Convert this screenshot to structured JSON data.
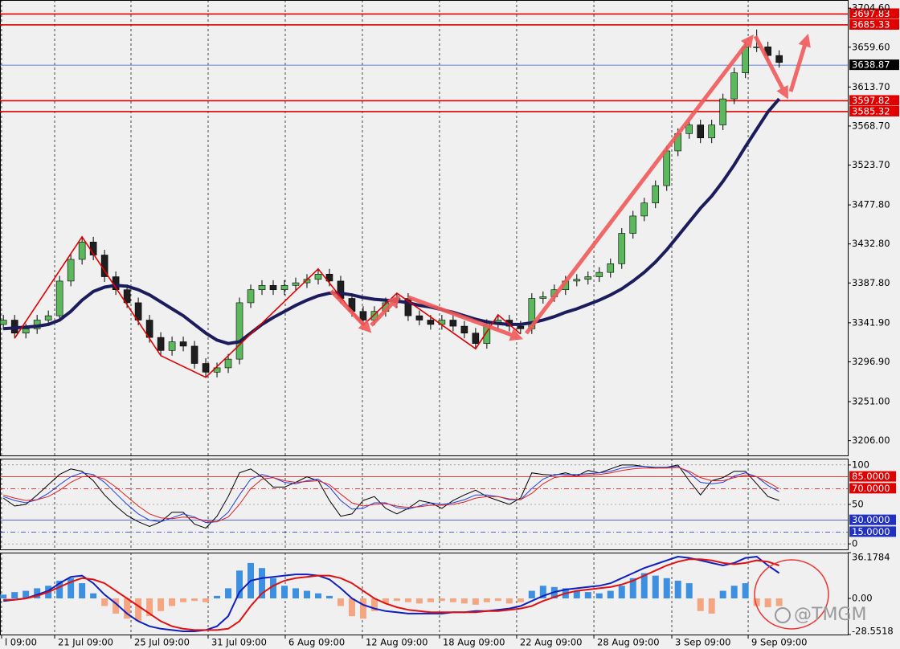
{
  "chart_data": [
    {
      "type": "candlestick",
      "xlim": [
        -0.3,
        75.1
      ],
      "xticks": [
        {
          "value": -0.16,
          "label": "l 09:00"
        },
        {
          "value": 4.56,
          "label": "21 Jul 09:00"
        },
        {
          "value": 11.35,
          "label": "25 Jul 09:00"
        },
        {
          "value": 18.21,
          "label": "31 Jul 09:00"
        },
        {
          "value": 25.07,
          "label": "6 Aug 09:00"
        },
        {
          "value": 31.93,
          "label": "12 Aug 09:00"
        },
        {
          "value": 38.79,
          "label": "18 Aug 09:00"
        },
        {
          "value": 45.65,
          "label": "22 Aug 09:00"
        },
        {
          "value": 52.52,
          "label": "28 Aug 09:00"
        },
        {
          "value": 59.45,
          "label": "3 Sep 09:00"
        },
        {
          "value": 66.24,
          "label": "9 Sep 09:00"
        }
      ],
      "ylim": [
        3189,
        3714
      ],
      "yticks": [
        {
          "value": 3704.6,
          "label": "3704.60"
        },
        {
          "value": 3659.6,
          "label": "3659.60"
        },
        {
          "value": 3613.7,
          "label": "3613.70"
        },
        {
          "value": 3568.7,
          "label": "3568.70"
        },
        {
          "value": 3523.7,
          "label": "3523.70"
        },
        {
          "value": 3477.8,
          "label": "3477.80"
        },
        {
          "value": 3432.8,
          "label": "3432.80"
        },
        {
          "value": 3387.8,
          "label": "3387.80"
        },
        {
          "value": 3341.9,
          "label": "3341.90"
        },
        {
          "value": 3296.9,
          "label": "3296.90"
        },
        {
          "value": 3251,
          "label": "3251.00"
        },
        {
          "value": 3206,
          "label": "3206.00"
        }
      ],
      "hlines": [
        {
          "value": 3697.83,
          "label": "3697.83",
          "color": "#e00000"
        },
        {
          "value": 3685.33,
          "label": "3685.33",
          "color": "#e00000"
        },
        {
          "value": 3638.87,
          "label": "3638.87",
          "color": "#3060d0"
        },
        {
          "value": 3597.82,
          "label": "3597.82",
          "color": "#e00000"
        },
        {
          "value": 3585.32,
          "label": "3585.32",
          "color": "#e00000"
        }
      ],
      "colors": {
        "up": "#5cb85c",
        "down": "#1e1e1e"
      },
      "open": [
        3340,
        3345,
        3330,
        3335,
        3345,
        3350,
        3390,
        3415,
        3435,
        3420,
        3395,
        3380,
        3365,
        3345,
        3325,
        3310,
        3320,
        3315,
        3295,
        3285,
        3290,
        3300,
        3365,
        3380,
        3385,
        3380,
        3385,
        3388,
        3392,
        3398,
        3390,
        3370,
        3355,
        3345,
        3355,
        3365,
        3370,
        3350,
        3345,
        3340,
        3345,
        3338,
        3330,
        3318,
        3340,
        3345,
        3338,
        3335,
        3370,
        3372,
        3380,
        3390,
        3392,
        3395,
        3400,
        3410,
        3445,
        3465,
        3480,
        3500,
        3540,
        3560,
        3570,
        3555,
        3570,
        3600,
        3630,
        3660,
        3660,
        3650
      ],
      "high": [
        3351,
        3351,
        3341,
        3351,
        3356,
        3396,
        3421,
        3441,
        3441,
        3426,
        3401,
        3386,
        3371,
        3351,
        3331,
        3326,
        3326,
        3321,
        3301,
        3296,
        3306,
        3371,
        3386,
        3391,
        3391,
        3391,
        3394,
        3398,
        3404,
        3404,
        3396,
        3376,
        3361,
        3361,
        3371,
        3376,
        3376,
        3356,
        3351,
        3351,
        3351,
        3344,
        3336,
        3346,
        3351,
        3351,
        3344,
        3376,
        3378,
        3386,
        3396,
        3398,
        3401,
        3406,
        3416,
        3451,
        3471,
        3486,
        3506,
        3546,
        3566,
        3576,
        3576,
        3576,
        3606,
        3636,
        3666,
        3680,
        3666,
        3656
      ],
      "low": [
        3334,
        3324,
        3324,
        3329,
        3339,
        3344,
        3384,
        3409,
        3414,
        3389,
        3374,
        3359,
        3339,
        3319,
        3304,
        3304,
        3309,
        3289,
        3279,
        3279,
        3284,
        3294,
        3359,
        3374,
        3374,
        3374,
        3379,
        3382,
        3386,
        3384,
        3364,
        3349,
        3339,
        3339,
        3349,
        3359,
        3344,
        3339,
        3334,
        3334,
        3332,
        3324,
        3312,
        3312,
        3334,
        3332,
        3329,
        3329,
        3364,
        3366,
        3374,
        3384,
        3386,
        3389,
        3394,
        3404,
        3439,
        3459,
        3474,
        3494,
        3534,
        3554,
        3549,
        3549,
        3564,
        3594,
        3624,
        3654,
        3644,
        3636
      ],
      "close": [
        3345,
        3330,
        3335,
        3345,
        3350,
        3390,
        3415,
        3435,
        3420,
        3395,
        3380,
        3365,
        3345,
        3325,
        3310,
        3320,
        3315,
        3295,
        3285,
        3290,
        3300,
        3365,
        3380,
        3385,
        3380,
        3385,
        3388,
        3392,
        3398,
        3390,
        3370,
        3355,
        3345,
        3355,
        3365,
        3370,
        3350,
        3345,
        3340,
        3345,
        3338,
        3330,
        3318,
        3340,
        3345,
        3338,
        3335,
        3370,
        3372,
        3380,
        3390,
        3392,
        3395,
        3400,
        3410,
        3445,
        3465,
        3480,
        3500,
        3540,
        3560,
        3570,
        3555,
        3570,
        3600,
        3630,
        3660,
        3660,
        3650,
        3642
      ],
      "ma": {
        "color": "#1c1c5c",
        "values": [
          3335,
          3336,
          3337,
          3338,
          3340,
          3345,
          3355,
          3368,
          3378,
          3383,
          3385,
          3384,
          3380,
          3374,
          3366,
          3358,
          3350,
          3340,
          3330,
          3322,
          3318,
          3320,
          3330,
          3340,
          3348,
          3355,
          3362,
          3368,
          3373,
          3376,
          3376,
          3374,
          3371,
          3369,
          3368,
          3367,
          3365,
          3362,
          3360,
          3357,
          3354,
          3350,
          3346,
          3343,
          3341,
          3340,
          3340,
          3342,
          3345,
          3349,
          3354,
          3358,
          3363,
          3368,
          3374,
          3381,
          3390,
          3400,
          3412,
          3426,
          3442,
          3458,
          3474,
          3488,
          3505,
          3524,
          3545,
          3565,
          3585,
          3600
        ]
      },
      "zigzag": {
        "color": "#e00000",
        "x": [
          1,
          7,
          14,
          18,
          28,
          32,
          35,
          42,
          44,
          46
        ],
        "values": [
          3324,
          3441,
          3304,
          3279,
          3404,
          3339,
          3376,
          3312,
          3351,
          3329
        ]
      }
    },
    {
      "type": "line",
      "ylim": [
        -7,
        108
      ],
      "yticks": [
        100,
        50,
        0
      ],
      "levels": [
        {
          "value": 85,
          "label": "85.0000",
          "color": "#e00000"
        },
        {
          "value": 70,
          "label": "70.0000",
          "color": "#e00000"
        },
        {
          "value": 30,
          "label": "30.0000",
          "color": "#2030c0"
        },
        {
          "value": 15,
          "label": "15.0000",
          "color": "#2030c0"
        }
      ],
      "series": [
        {
          "color": "#000000",
          "values": [
            58,
            48,
            50,
            62,
            75,
            88,
            95,
            92,
            80,
            62,
            48,
            36,
            28,
            22,
            28,
            40,
            40,
            25,
            20,
            35,
            60,
            90,
            95,
            85,
            72,
            72,
            78,
            85,
            80,
            55,
            35,
            38,
            55,
            60,
            45,
            38,
            45,
            55,
            52,
            45,
            55,
            62,
            68,
            60,
            55,
            50,
            58,
            90,
            88,
            87,
            90,
            86,
            93,
            90,
            95,
            100,
            100,
            98,
            96,
            97,
            100,
            80,
            62,
            80,
            84,
            92,
            92,
            76,
            60,
            55
          ]
        },
        {
          "color": "#2040e0",
          "values": [
            60,
            55,
            52,
            56,
            64,
            75,
            85,
            90,
            88,
            78,
            64,
            50,
            38,
            30,
            28,
            33,
            38,
            34,
            27,
            28,
            40,
            62,
            82,
            88,
            84,
            78,
            76,
            80,
            82,
            72,
            55,
            44,
            45,
            52,
            52,
            46,
            44,
            48,
            52,
            50,
            52,
            56,
            62,
            62,
            60,
            56,
            56,
            70,
            82,
            88,
            88,
            88,
            89,
            90,
            92,
            96,
            98,
            98,
            97,
            97,
            98,
            90,
            78,
            76,
            78,
            86,
            90,
            85,
            74,
            66
          ]
        },
        {
          "color": "#e02020",
          "values": [
            62,
            58,
            55,
            56,
            60,
            68,
            78,
            85,
            86,
            82,
            72,
            60,
            48,
            38,
            33,
            32,
            34,
            33,
            29,
            28,
            34,
            50,
            70,
            82,
            84,
            80,
            78,
            79,
            80,
            75,
            63,
            52,
            48,
            50,
            51,
            48,
            46,
            47,
            49,
            49,
            50,
            53,
            58,
            60,
            60,
            57,
            56,
            64,
            76,
            84,
            86,
            86,
            87,
            88,
            90,
            93,
            95,
            96,
            96,
            96,
            97,
            92,
            84,
            80,
            80,
            84,
            87,
            85,
            78,
            70
          ]
        }
      ]
    },
    {
      "type": "macd",
      "ylim": [
        -28.5518,
        36.1784
      ],
      "yticks": [
        36.1784,
        {
          "value": 0,
          "label": "0.00"
        },
        -28.5518
      ],
      "histogram": {
        "up": "#3d8fe0",
        "down": "#f4a582",
        "values": [
          3,
          5,
          6,
          8,
          10,
          14,
          16,
          12,
          4,
          -6,
          -12,
          -16,
          -18,
          -14,
          -10,
          -6,
          -3,
          -2,
          -3,
          2,
          8,
          22,
          28,
          24,
          16,
          10,
          8,
          6,
          4,
          2,
          -6,
          -14,
          -16,
          -10,
          -4,
          -2,
          -3,
          -4,
          -3,
          -2,
          -3,
          -4,
          -5,
          -3,
          -2,
          -4,
          -3,
          6,
          10,
          9,
          8,
          6,
          5,
          4,
          6,
          10,
          16,
          20,
          18,
          16,
          14,
          12,
          -10,
          -12,
          6,
          10,
          12,
          -6,
          -7,
          -6
        ]
      },
      "series": [
        {
          "color": "#1020c0",
          "values": [
            -2,
            -1,
            0,
            3,
            6,
            12,
            17,
            18,
            12,
            3,
            -4,
            -12,
            -18,
            -22,
            -24,
            -25,
            -26,
            -26,
            -25,
            -22,
            -14,
            5,
            14,
            16,
            17,
            18,
            19,
            19,
            18,
            15,
            8,
            0,
            -5,
            -8,
            -10,
            -11,
            -12,
            -12,
            -12,
            -12,
            -11,
            -11,
            -10,
            -10,
            -9,
            -8,
            -6,
            -2,
            2,
            5,
            7,
            8,
            9,
            10,
            12,
            16,
            20,
            24,
            27,
            30,
            33,
            32,
            30,
            28,
            26,
            28,
            32,
            33,
            26,
            20
          ]
        },
        {
          "color": "#e01010",
          "values": [
            -1,
            -1,
            0,
            2,
            5,
            9,
            13,
            16,
            15,
            12,
            6,
            0,
            -6,
            -12,
            -18,
            -22,
            -24,
            -25,
            -25,
            -25,
            -24,
            -18,
            -6,
            4,
            10,
            14,
            16,
            17,
            18,
            18,
            16,
            12,
            6,
            0,
            -4,
            -7,
            -9,
            -10,
            -11,
            -11,
            -11,
            -11,
            -11,
            -10,
            -10,
            -9,
            -8,
            -6,
            -2,
            1,
            4,
            6,
            7,
            8,
            9,
            11,
            14,
            18,
            22,
            26,
            29,
            31,
            31,
            30,
            28,
            27,
            28,
            30,
            29,
            26
          ]
        }
      ]
    }
  ],
  "watermark": "@TMGM"
}
